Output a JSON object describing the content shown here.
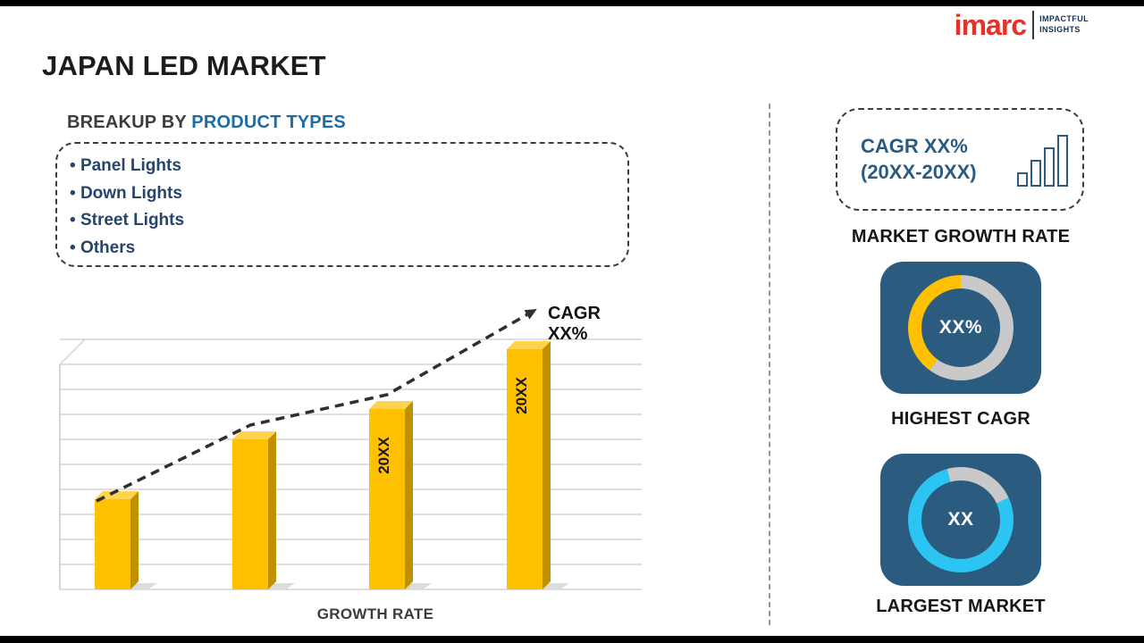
{
  "colors": {
    "brand_red": "#e53228",
    "panel_blue": "#2b5c80",
    "accent_blue": "#1e6ca6",
    "navy": "#27446b",
    "bar_yellow": "#ffc000",
    "bar_side": "#bf9000",
    "bar_top": "#ffd34d",
    "donut_gray": "#c9c9c9",
    "cyan": "#2bc4f3",
    "grid_gray": "#cccccc"
  },
  "header": {
    "title": "JAPAN LED MARKET"
  },
  "logo": {
    "brand": "imarc",
    "tagline_line1": "IMPACTFUL",
    "tagline_line2": "INSIGHTS"
  },
  "icons": {
    "cagr_box_icon": "bar-chart-icon",
    "trend_icon": "dashed-arrow-up"
  },
  "breakup": {
    "heading_prefix": "BREAKUP BY",
    "heading_accent": "PRODUCT TYPES",
    "items": [
      "Panel Lights",
      "Down Lights",
      "Street Lights",
      "Others"
    ]
  },
  "chart_data": {
    "type": "bar",
    "values": [
      36,
      60,
      72,
      96
    ],
    "bar_labels": [
      "",
      "",
      "20XX",
      "20XX"
    ],
    "title": "",
    "xlabel": "GROWTH RATE",
    "ylabel": "",
    "ylim": [
      0,
      100
    ],
    "gridlines": 10,
    "grid": true,
    "legend": "none",
    "annotation": "CAGR XX%",
    "trend": "dashed-arrow-up"
  },
  "sidebar": {
    "cagr_box": {
      "line1": "CAGR XX%",
      "line2": "(20XX-20XX)"
    },
    "market_growth_label": "MARKET GROWTH RATE",
    "highest_cagr": {
      "value": "XX%",
      "label": "HIGHEST CAGR"
    },
    "largest_market": {
      "value": "XX",
      "label": "LARGEST MARKET"
    }
  }
}
